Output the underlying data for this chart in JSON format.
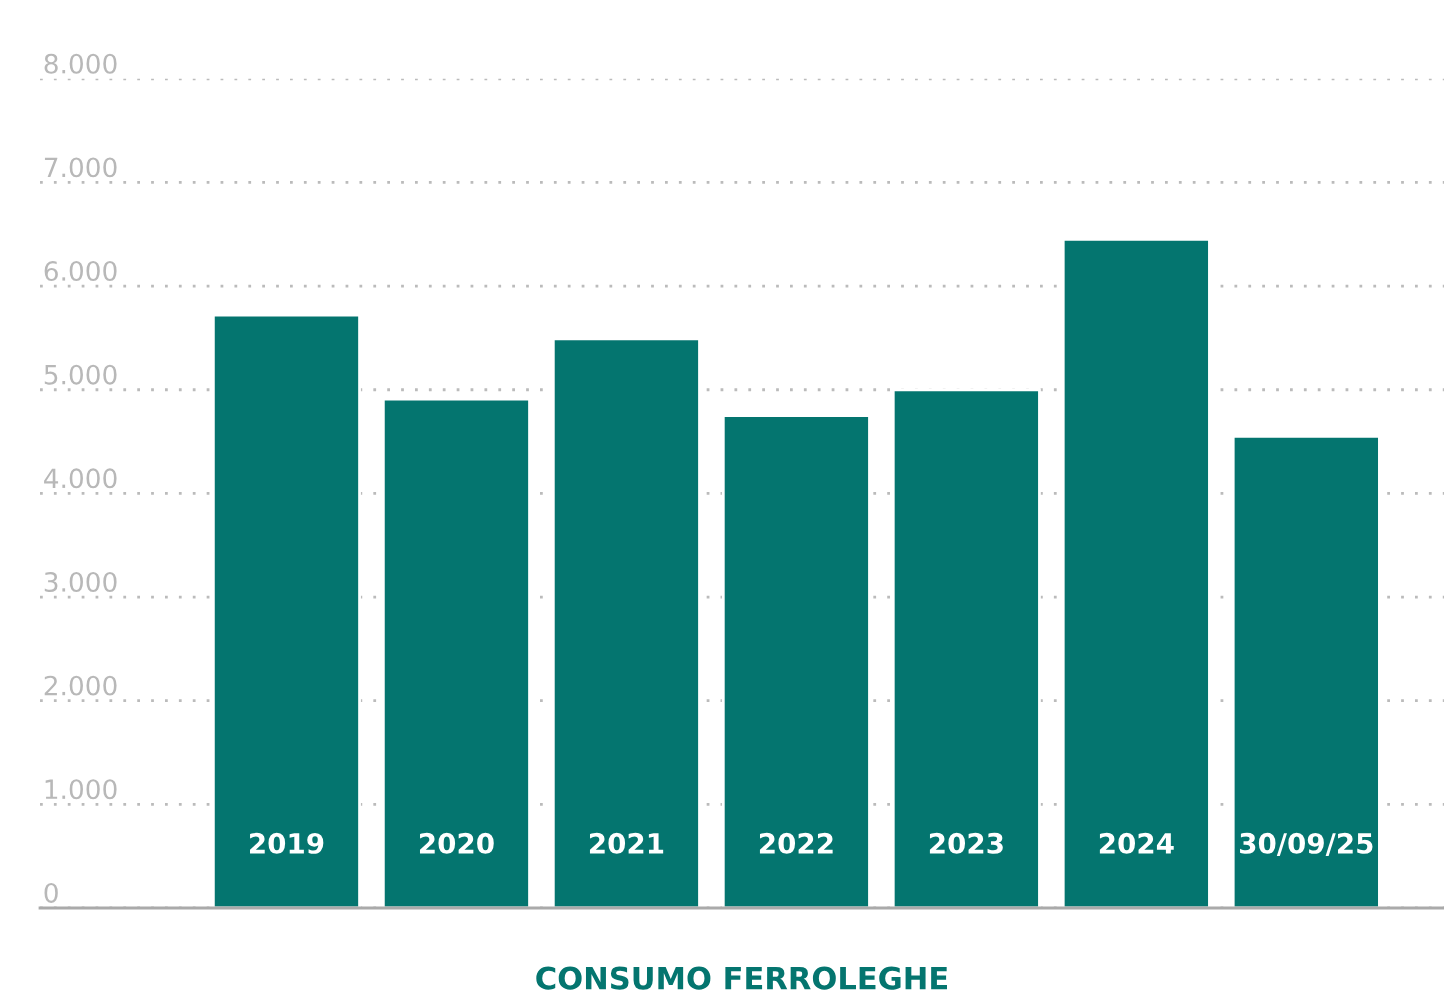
{
  "chart_data": {
    "type": "bar",
    "xlabel": "CONSUMO FERROLEGHE",
    "categories": [
      "2019",
      "2020",
      "2021",
      "2022",
      "2023",
      "2024",
      "30/09/25"
    ],
    "values": [
      5720,
      4910,
      5490,
      4750,
      5000,
      6450,
      4550
    ],
    "color": "#04756f",
    "ylim": [
      0,
      8000
    ],
    "yticks": [
      0,
      {
        "value": 1000,
        "label": "1.000"
      },
      {
        "value": 2000,
        "label": "2.000"
      },
      {
        "value": 3000,
        "label": "3.000"
      },
      {
        "value": 4000,
        "label": "4.000"
      },
      {
        "value": 5000,
        "label": "5.000"
      },
      {
        "value": 6000,
        "label": "6.000"
      },
      {
        "value": 7000,
        "label": "7.000"
      },
      {
        "value": 8000,
        "label": "8.000"
      }
    ],
    "grid": "y"
  }
}
